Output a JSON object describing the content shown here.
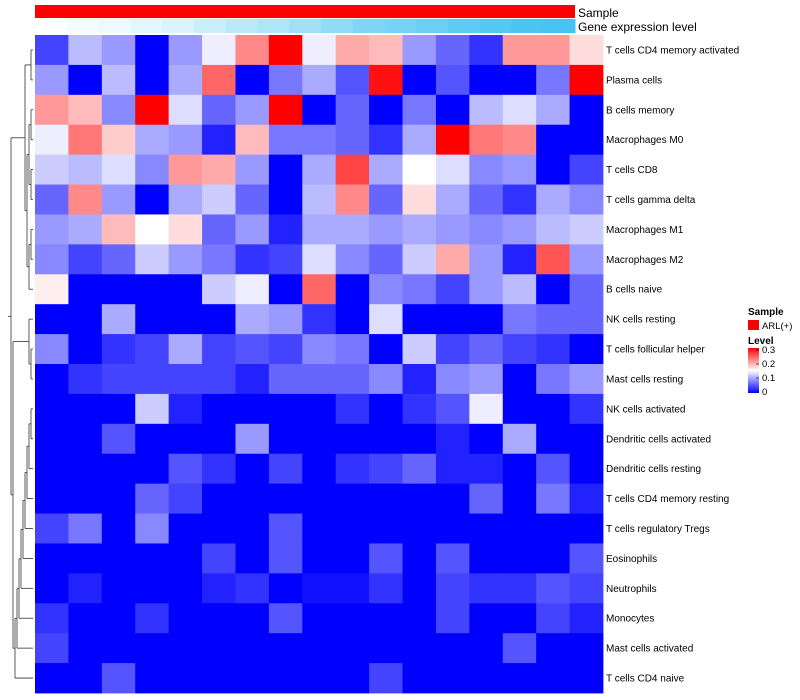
{
  "chart_data": {
    "type": "heatmap",
    "annotation_tracks": [
      "Sample",
      "Gene expression level"
    ],
    "legend": {
      "sample_title": "Sample",
      "sample_label": "ARL(+)",
      "sample_color": "#ff0000",
      "level_title": "Level",
      "level_ticks": [
        "0.3",
        "0.2",
        "0.1",
        "0"
      ],
      "color_low": "#0000ff",
      "color_mid": "#ffffff",
      "color_high": "#ff0000",
      "range": [
        0,
        0.3
      ]
    },
    "expression_track": [
      0.0,
      0.05,
      0.1,
      0.15,
      0.2,
      0.28,
      0.36,
      0.44,
      0.52,
      0.6,
      0.68,
      0.74,
      0.8,
      0.86,
      0.92,
      0.96,
      1.0
    ],
    "rows": [
      "T cells CD4 memory activated",
      "Plasma cells",
      "B cells memory",
      "Macrophages M0",
      "T cells CD8",
      "T cells gamma delta",
      "Macrophages M1",
      "Macrophages M2",
      "B cells naive",
      "NK cells resting",
      "T cells follicular helper",
      "Mast cells resting",
      "NK cells activated",
      "Dendritic cells activated",
      "Dendritic cells resting",
      "T cells CD4 memory resting",
      "T cells regulatory  Tregs",
      "Eosinophils",
      "Neutrophils",
      "Monocytes",
      "Mast cells activated",
      "T cells CD4 naive"
    ],
    "values": [
      [
        0.04,
        0.11,
        0.09,
        0.0,
        0.09,
        0.14,
        0.22,
        0.3,
        0.14,
        0.2,
        0.19,
        0.09,
        0.06,
        0.03,
        0.21,
        0.21,
        0.17
      ],
      [
        0.09,
        0.0,
        0.11,
        0.0,
        0.1,
        0.24,
        0.0,
        0.07,
        0.1,
        0.05,
        0.29,
        0.0,
        0.05,
        0.0,
        0.0,
        0.07,
        0.3
      ],
      [
        0.21,
        0.19,
        0.08,
        0.3,
        0.13,
        0.06,
        0.09,
        0.3,
        0.0,
        0.06,
        0.0,
        0.07,
        0.0,
        0.11,
        0.13,
        0.1,
        0.0
      ],
      [
        0.14,
        0.23,
        0.18,
        0.1,
        0.09,
        0.02,
        0.19,
        0.07,
        0.07,
        0.06,
        0.03,
        0.1,
        0.3,
        0.23,
        0.22,
        0.0,
        0.0
      ],
      [
        0.12,
        0.11,
        0.13,
        0.08,
        0.21,
        0.2,
        0.09,
        0.0,
        0.1,
        0.26,
        0.1,
        0.15,
        0.13,
        0.08,
        0.09,
        0.0,
        0.04
      ],
      [
        0.06,
        0.22,
        0.09,
        0.0,
        0.1,
        0.12,
        0.06,
        0.0,
        0.11,
        0.22,
        0.06,
        0.17,
        0.1,
        0.06,
        0.03,
        0.1,
        0.08
      ],
      [
        0.09,
        0.1,
        0.19,
        0.15,
        0.17,
        0.06,
        0.09,
        0.02,
        0.1,
        0.1,
        0.09,
        0.1,
        0.09,
        0.08,
        0.09,
        0.11,
        0.12
      ],
      [
        0.08,
        0.04,
        0.06,
        0.12,
        0.09,
        0.07,
        0.03,
        0.04,
        0.13,
        0.08,
        0.06,
        0.12,
        0.2,
        0.09,
        0.02,
        0.25,
        0.09
      ],
      [
        0.16,
        0.0,
        0.0,
        0.0,
        0.0,
        0.12,
        0.14,
        0.0,
        0.24,
        0.0,
        0.08,
        0.07,
        0.04,
        0.09,
        0.11,
        0.0,
        0.06
      ],
      [
        0.0,
        0.0,
        0.1,
        0.0,
        0.0,
        0.0,
        0.1,
        0.09,
        0.03,
        0.0,
        0.13,
        0.0,
        0.0,
        0.0,
        0.07,
        0.06,
        0.06
      ],
      [
        0.08,
        0.0,
        0.03,
        0.04,
        0.1,
        0.04,
        0.05,
        0.04,
        0.08,
        0.07,
        0.0,
        0.12,
        0.04,
        0.06,
        0.04,
        0.03,
        0.0
      ],
      [
        0.0,
        0.03,
        0.04,
        0.04,
        0.04,
        0.04,
        0.02,
        0.06,
        0.06,
        0.06,
        0.08,
        0.02,
        0.08,
        0.09,
        0.0,
        0.07,
        0.09
      ],
      [
        0.0,
        0.0,
        0.0,
        0.12,
        0.02,
        0.0,
        0.0,
        0.0,
        0.0,
        0.03,
        0.0,
        0.03,
        0.05,
        0.14,
        0.0,
        0.0,
        0.03
      ],
      [
        0.0,
        0.0,
        0.05,
        0.0,
        0.0,
        0.0,
        0.09,
        0.0,
        0.0,
        0.0,
        0.0,
        0.0,
        0.02,
        0.0,
        0.1,
        0.0,
        0.0
      ],
      [
        0.0,
        0.0,
        0.0,
        0.0,
        0.05,
        0.03,
        0.0,
        0.04,
        0.0,
        0.03,
        0.04,
        0.06,
        0.02,
        0.02,
        0.0,
        0.05,
        0.0
      ],
      [
        0.0,
        0.0,
        0.0,
        0.06,
        0.04,
        0.0,
        0.0,
        0.0,
        0.0,
        0.0,
        0.0,
        0.0,
        0.0,
        0.06,
        0.0,
        0.07,
        0.02
      ],
      [
        0.04,
        0.07,
        0.0,
        0.08,
        0.0,
        0.0,
        0.0,
        0.05,
        0.0,
        0.0,
        0.0,
        0.0,
        0.0,
        0.0,
        0.0,
        0.0,
        0.0
      ],
      [
        0.0,
        0.0,
        0.0,
        0.0,
        0.0,
        0.04,
        0.0,
        0.05,
        0.0,
        0.0,
        0.05,
        0.0,
        0.05,
        0.0,
        0.0,
        0.0,
        0.05
      ],
      [
        0.0,
        0.02,
        0.0,
        0.0,
        0.0,
        0.02,
        0.03,
        0.0,
        0.01,
        0.01,
        0.03,
        0.0,
        0.04,
        0.03,
        0.03,
        0.05,
        0.04
      ],
      [
        0.03,
        0.0,
        0.0,
        0.03,
        0.0,
        0.0,
        0.0,
        0.05,
        0.0,
        0.0,
        0.0,
        0.0,
        0.04,
        0.0,
        0.0,
        0.04,
        0.02
      ],
      [
        0.04,
        0.0,
        0.0,
        0.0,
        0.0,
        0.0,
        0.0,
        0.0,
        0.0,
        0.0,
        0.0,
        0.0,
        0.0,
        0.0,
        0.05,
        0.0,
        0.0
      ],
      [
        0.0,
        0.0,
        0.05,
        0.0,
        0.0,
        0.0,
        0.0,
        0.0,
        0.0,
        0.0,
        0.04,
        0.0,
        0.0,
        0.0,
        0.0,
        0.0,
        0.0
      ]
    ]
  }
}
